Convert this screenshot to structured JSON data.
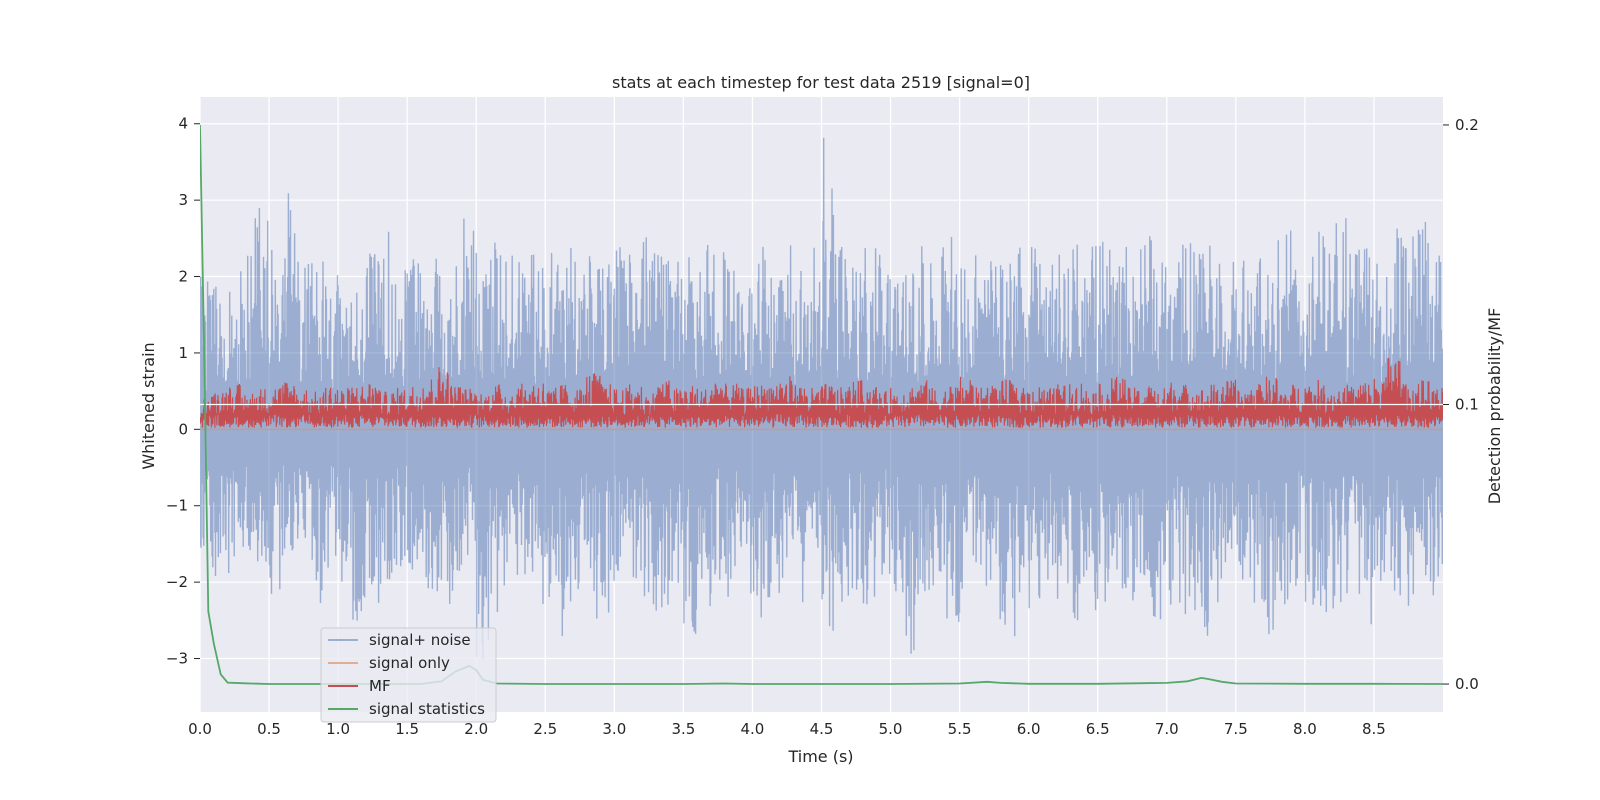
{
  "chart_data": {
    "type": "line",
    "title": "stats at each timestep for test data 2519 [signal=0]",
    "xlabel": "Time (s)",
    "ylabel": "Whitened strain",
    "y2label": "Detection probability/MF",
    "xlim": [
      0.0,
      9.0
    ],
    "ylim": [
      -3.7,
      4.35
    ],
    "y2lim": [
      -0.01,
      0.21
    ],
    "x_ticks": [
      "0.0",
      "0.5",
      "1.0",
      "1.5",
      "2.0",
      "2.5",
      "3.0",
      "3.5",
      "4.0",
      "4.5",
      "5.0",
      "5.5",
      "6.0",
      "6.5",
      "7.0",
      "7.5",
      "8.0",
      "8.5"
    ],
    "x_tick_values": [
      0.0,
      0.5,
      1.0,
      1.5,
      2.0,
      2.5,
      3.0,
      3.5,
      4.0,
      4.5,
      5.0,
      5.5,
      6.0,
      6.5,
      7.0,
      7.5,
      8.0,
      8.5
    ],
    "y_ticks": [
      "−3",
      "−2",
      "−1",
      "0",
      "1",
      "2",
      "3",
      "4"
    ],
    "y_tick_values": [
      -3,
      -2,
      -1,
      0,
      1,
      2,
      3,
      4
    ],
    "y2_ticks": [
      "0.0",
      "0.1",
      "0.2"
    ],
    "y2_tick_values": [
      0.0,
      0.1,
      0.2
    ],
    "grid": true,
    "legend_position": "lower-left",
    "series": [
      {
        "name": "signal+ noise",
        "axis": "left",
        "color": "#4c72b0",
        "alpha": 0.5,
        "description_note_free": true,
        "envelope_min": [
          -1.85,
          -2.1,
          -2.0,
          -1.7,
          -1.9,
          -2.2,
          -1.6,
          -1.8,
          -2.3,
          -1.9,
          -2.0,
          -2.6,
          -2.4,
          -2.1,
          -1.8,
          -2.0,
          -2.2,
          -2.5,
          -2.3,
          -2.0,
          -3.1,
          -2.4,
          -2.2,
          -1.9,
          -2.5,
          -2.3,
          -2.8,
          -2.1,
          -2.6,
          -2.4,
          -2.0,
          -2.2,
          -2.3,
          -2.5,
          -2.1,
          -2.7,
          -2.4,
          -2.0,
          -2.2,
          -2.3,
          -2.6,
          -2.2,
          -2.0,
          -2.4,
          -2.1,
          -2.8,
          -2.3,
          -2.2,
          -2.5,
          -2.0,
          -2.3,
          -3.05,
          -2.4,
          -2.2,
          -2.6,
          -2.1,
          -2.3,
          -2.5,
          -2.9,
          -2.2,
          -2.4,
          -2.0,
          -2.3,
          -2.5,
          -2.6,
          -2.3,
          -2.1,
          -2.4,
          -2.2,
          -2.7,
          -2.3,
          -2.5,
          -2.9,
          -2.4,
          -2.2,
          -2.0,
          -2.3,
          -2.8,
          -2.4,
          -2.1,
          -2.3,
          -2.5,
          -2.4,
          -2.2,
          -2.6,
          -2.0,
          -2.3,
          -2.4,
          -2.1,
          -2.2
        ],
        "envelope_max": [
          2.0,
          1.9,
          2.1,
          2.3,
          3.0,
          2.4,
          3.15,
          2.2,
          2.3,
          2.1,
          2.4,
          2.2,
          2.3,
          2.6,
          2.2,
          2.4,
          2.5,
          2.3,
          2.2,
          3.0,
          2.4,
          2.5,
          2.3,
          2.2,
          2.4,
          2.5,
          2.6,
          2.3,
          2.4,
          2.2,
          2.5,
          2.3,
          2.6,
          2.4,
          2.2,
          2.3,
          2.5,
          2.4,
          2.3,
          2.2,
          2.4,
          2.3,
          2.5,
          2.2,
          2.6,
          4.0,
          2.5,
          2.3,
          2.4,
          2.6,
          2.2,
          2.3,
          2.5,
          2.4,
          2.7,
          2.3,
          2.5,
          2.4,
          2.3,
          2.5,
          2.4,
          2.2,
          2.3,
          2.5,
          2.4,
          2.6,
          2.3,
          2.5,
          2.7,
          2.4,
          2.3,
          2.5,
          2.4,
          2.6,
          2.3,
          2.4,
          2.5,
          2.2,
          2.8,
          2.4,
          2.3,
          2.6,
          2.9,
          2.4,
          2.5,
          2.3,
          2.7,
          2.6,
          2.8,
          2.3
        ]
      },
      {
        "name": "signal only",
        "axis": "left",
        "color": "#dd8452",
        "alpha": 0.6,
        "x": [
          0.0,
          9.0
        ],
        "y": [
          0.0,
          0.0
        ]
      },
      {
        "name": "MF",
        "axis": "left",
        "color": "#c44e52",
        "baseline": 0.0,
        "envelope_max": [
          0.45,
          0.55,
          0.6,
          0.5,
          0.55,
          0.6,
          0.65,
          0.55,
          0.5,
          0.6,
          0.55,
          0.6,
          0.65,
          0.5,
          0.55,
          0.6,
          0.7,
          0.85,
          0.6,
          0.55,
          0.5,
          0.6,
          0.55,
          0.6,
          0.65,
          0.55,
          0.6,
          0.55,
          0.75,
          0.6,
          0.55,
          0.6,
          0.5,
          0.65,
          0.55,
          0.6,
          0.55,
          0.7,
          0.6,
          0.55,
          0.6,
          0.65,
          0.7,
          0.6,
          0.55,
          0.6,
          0.55,
          0.65,
          0.6,
          0.5,
          0.55,
          0.6,
          0.65,
          0.55,
          0.6,
          0.7,
          0.55,
          0.6,
          0.65,
          0.55,
          0.6,
          0.55,
          0.6,
          0.65,
          0.55,
          0.6,
          0.7,
          0.55,
          0.6,
          0.55,
          0.65,
          0.6,
          0.55,
          0.6,
          0.65,
          0.55,
          0.6,
          0.7,
          0.55,
          0.6,
          0.65,
          0.6,
          0.55,
          0.6,
          0.65,
          0.7,
          1.0,
          0.6,
          0.65,
          0.55
        ]
      },
      {
        "name": "signal statistics",
        "axis": "right",
        "color": "#55a868",
        "x": [
          0.0,
          0.03,
          0.06,
          0.1,
          0.15,
          0.2,
          0.3,
          0.5,
          0.8,
          1.2,
          1.6,
          1.75,
          1.85,
          1.95,
          2.0,
          2.05,
          2.15,
          2.5,
          3.0,
          3.5,
          3.8,
          4.0,
          4.5,
          5.0,
          5.5,
          5.7,
          5.8,
          6.0,
          6.5,
          7.0,
          7.15,
          7.25,
          7.3,
          7.4,
          7.5,
          8.0,
          8.5,
          9.0
        ],
        "y": [
          0.2,
          0.12,
          0.026,
          0.0145,
          0.0035,
          0.0005,
          0.0003,
          0.0,
          0.0,
          0.0,
          0.0,
          0.001,
          0.0045,
          0.0065,
          0.005,
          0.0015,
          0.0002,
          0.0,
          0.0,
          0.0,
          0.0002,
          0.0,
          0.0,
          0.0,
          0.0002,
          0.0008,
          0.0004,
          0.0001,
          0.0001,
          0.0004,
          0.001,
          0.0022,
          0.0018,
          0.0008,
          0.0002,
          0.0001,
          0.0001,
          0.0
        ]
      }
    ]
  }
}
